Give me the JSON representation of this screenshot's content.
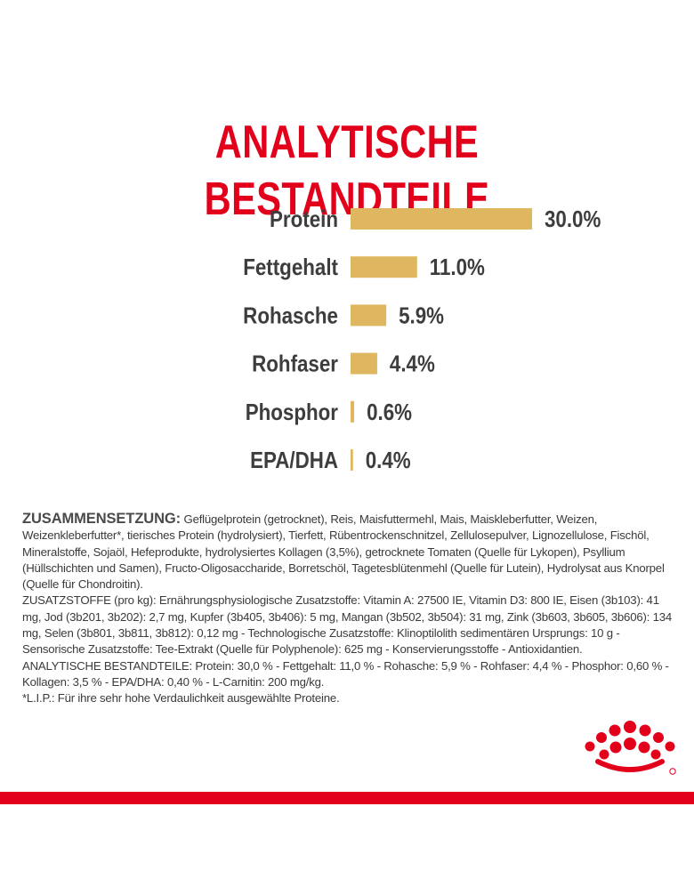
{
  "header": {
    "title": "ANALYTISCHE BESTANDTEILE"
  },
  "chart_data": {
    "type": "bar",
    "orientation": "horizontal",
    "categories": [
      "Protein",
      "Fettgehalt",
      "Rohasche",
      "Rohfaser",
      "Phosphor",
      "EPA/DHA"
    ],
    "values": [
      30.0,
      11.0,
      5.9,
      4.4,
      0.6,
      0.4
    ],
    "value_labels": [
      "30.0%",
      "11.0%",
      "5.9%",
      "4.4%",
      "0.6%",
      "0.4%"
    ],
    "bar_color": "#e0b761",
    "xlim": [
      0,
      30
    ],
    "grid": false,
    "legend": "none"
  },
  "composition": {
    "heading": "ZUSAMMENSETZUNG:",
    "ingredients": "Geflügelprotein (getrocknet), Reis, Maisfuttermehl, Mais, Maiskleberfutter, Weizen, Weizenkleberfutter*, tierisches Protein (hydrolysiert), Tierfett, Rübentrockenschnitzel, Zellulosepulver, Lignozellulose, Fischöl, Mineralstoffe, Sojaöl, Hefeprodukte, hydrolysiertes Kollagen (3,5%), getrocknete Tomaten (Quelle für Lykopen), Psyllium (Hüllschichten und Samen), Fructo-Oligosaccharide, Borretschöl, Tagetesblütenmehl (Quelle für Lutein), Hydrolysat aus Knorpel (Quelle für Chondroitin).",
    "additives": "ZUSATZSTOFFE (pro kg): Ernährungsphysiologische Zusatzstoffe: Vitamin A: 27500 IE, Vitamin D3: 800 IE, Eisen (3b103): 41 mg, Jod (3b201, 3b202): 2,7 mg, Kupfer (3b405, 3b406): 5 mg, Mangan (3b502, 3b504): 31 mg, Zink (3b603, 3b605, 3b606): 134 mg, Selen (3b801, 3b811, 3b812): 0,12 mg - Technologische Zusatzstoffe: Klinoptilolith sedimentären Ursprungs: 10 g - Sensorische Zusatzstoffe: Tee-Extrakt (Quelle für Polyphenole): 625 mg - Konservierungsstoffe - Antioxidantien.",
    "analytics": "ANALYTISCHE BESTANDTEILE: Protein: 30,0 % - Fettgehalt: 11,0 % - Rohasche: 5,9 % - Rohfaser: 4,4 % - Phosphor: 0,60 % - Kollagen: 3,5 % - EPA/DHA: 0,40 % - L-Carnitin: 200 mg/kg.",
    "footnote": "*L.I.P.: Für ihre sehr hohe Verdaulichkeit ausgewählte Proteine."
  },
  "colors": {
    "brand_red": "#e2001a",
    "bar": "#e0b761",
    "text": "#3a3a3a"
  },
  "logo": {
    "icon": "crown-icon"
  }
}
